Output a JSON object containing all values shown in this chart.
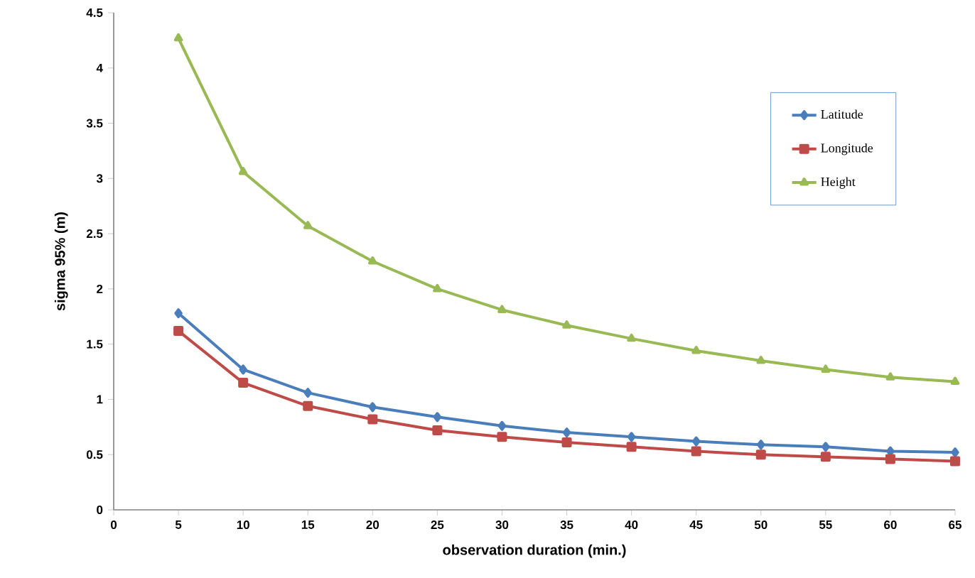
{
  "chart_data": {
    "type": "line",
    "xlabel": "observation duration (min.)",
    "ylabel": "sigma 95% (m)",
    "x": [
      5,
      10,
      15,
      20,
      25,
      30,
      35,
      40,
      45,
      50,
      55,
      60,
      65
    ],
    "series": [
      {
        "name": "Latitude",
        "color": "#4a7ebb",
        "marker": "diamond",
        "values": [
          1.78,
          1.27,
          1.06,
          0.93,
          0.84,
          0.76,
          0.7,
          0.66,
          0.62,
          0.59,
          0.57,
          0.53,
          0.52
        ]
      },
      {
        "name": "Longitude",
        "color": "#be4b48",
        "marker": "square",
        "values": [
          1.62,
          1.15,
          0.94,
          0.82,
          0.72,
          0.66,
          0.61,
          0.57,
          0.53,
          0.5,
          0.48,
          0.46,
          0.44
        ]
      },
      {
        "name": "Height",
        "color": "#98b954",
        "marker": "triangle",
        "values": [
          4.27,
          3.06,
          2.57,
          2.25,
          2.0,
          1.81,
          1.67,
          1.55,
          1.44,
          1.35,
          1.27,
          1.2,
          1.16
        ]
      }
    ],
    "xlim": [
      0,
      65
    ],
    "ylim": [
      0,
      4.5
    ],
    "xticks": [
      0,
      5,
      10,
      15,
      20,
      25,
      30,
      35,
      40,
      45,
      50,
      55,
      60,
      65
    ],
    "yticks": [
      0,
      0.5,
      1,
      1.5,
      2,
      2.5,
      3,
      3.5,
      4,
      4.5
    ],
    "grid": false,
    "legend": "top right",
    "line_style": "solid"
  }
}
